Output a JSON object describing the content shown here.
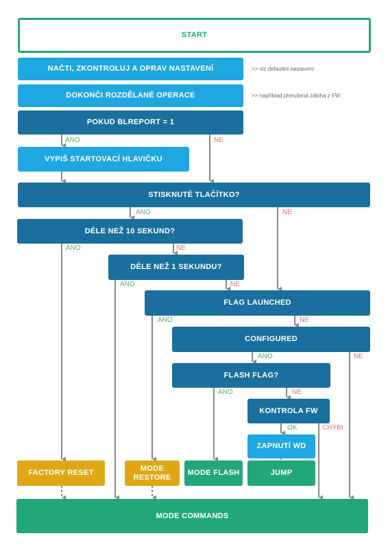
{
  "nodes": {
    "start": "START",
    "nacti": "NAČTI, ZKONTROLUJ A OPRAV NASTAVENÍ",
    "dokonci": "DOKONČI ROZDĚLANÉ OPERACE",
    "pokud": "POKUD BLREPORT = 1",
    "vypis": "VYPIŠ STARTOVACÍ HLAVIČKU",
    "stisknute": "STISKNUTÉ TLAČÍTKO?",
    "dele10": "DÉLE NEŽ 10 SEKUND?",
    "dele1": "DÉLE NEŽ 1 SEKUNDU?",
    "flag_launched": "FLAG LAUNCHED",
    "configured": "CONFIGURED",
    "flash_flag": "FLASH FLAG?",
    "kontrola": "KONTROLA FW",
    "zapnuti": "ZAPNUTÍ WD",
    "factory_reset": "FACTORY RESET",
    "mode_restore_1": "MODE",
    "mode_restore_2": "RESTORE",
    "mode_flash": "MODE FLASH",
    "jump": "JUMP",
    "mode_commands": "MODE COMMANDS"
  },
  "notes": {
    "nacti": ">> viz defaultní nastavení",
    "dokonci": ">> například přerušená záloha z FW"
  },
  "edge_labels": {
    "yes": "ANO",
    "no": "NE",
    "ok": "OK",
    "missing": "CHYBÍ"
  },
  "colors": {
    "light_blue": "#1fa7e1",
    "dark_blue": "#1a6f9e",
    "green": "#22a77a",
    "yellow": "#dfa714",
    "arrow": "#888888",
    "yes_label": "#5aae68",
    "no_label": "#e0707a"
  }
}
